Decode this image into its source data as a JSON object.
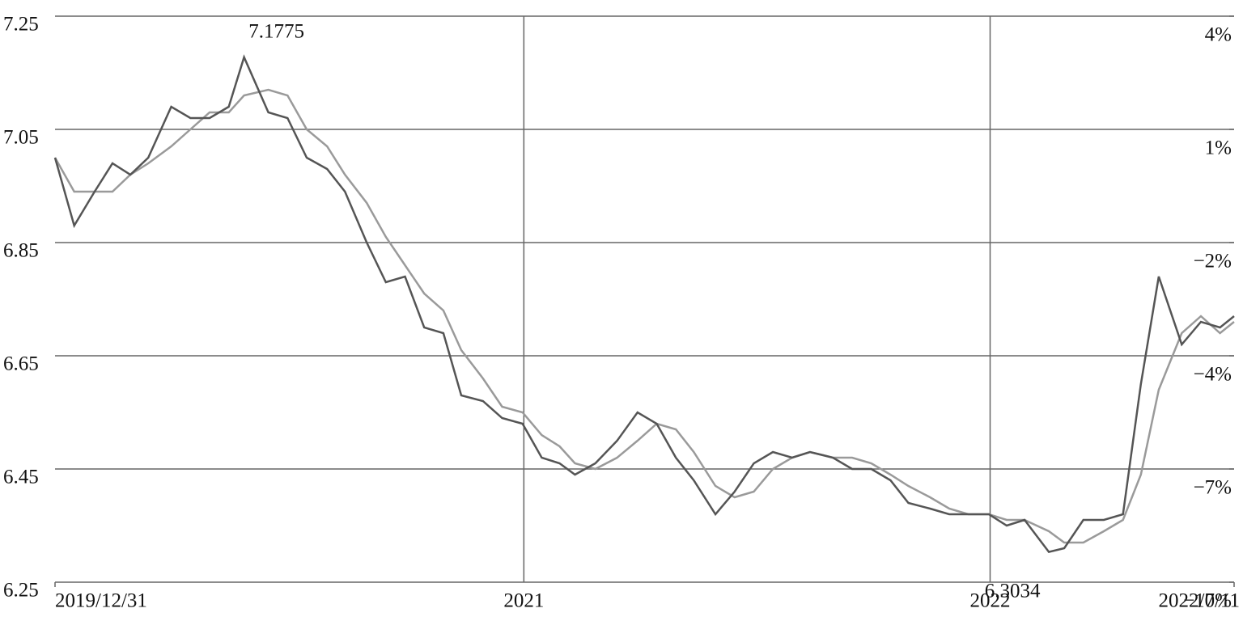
{
  "chart_data": {
    "type": "line",
    "x": [
      "2019/12/31",
      "2020/1/15",
      "2020/1/31",
      "2020/2/14",
      "2020/2/28",
      "2020/3/13",
      "2020/3/31",
      "2020/4/15",
      "2020/4/30",
      "2020/5/15",
      "2020/5/27",
      "2020/6/15",
      "2020/6/30",
      "2020/7/15",
      "2020/7/31",
      "2020/8/14",
      "2020/8/31",
      "2020/9/15",
      "2020/9/30",
      "2020/10/15",
      "2020/10/30",
      "2020/11/13",
      "2020/11/30",
      "2020/12/15",
      "2020/12/31",
      "2021/1/15",
      "2021/1/29",
      "2021/2/10",
      "2021/2/26",
      "2021/3/15",
      "2021/3/31",
      "2021/4/15",
      "2021/4/30",
      "2021/5/14",
      "2021/5/31",
      "2021/6/15",
      "2021/6/30",
      "2021/7/15",
      "2021/7/30",
      "2021/8/13",
      "2021/8/31",
      "2021/9/15",
      "2021/9/30",
      "2021/10/15",
      "2021/10/29",
      "2021/11/15",
      "2021/11/30",
      "2021/12/15",
      "2021/12/31",
      "2022/1/14",
      "2022/1/28",
      "2022/2/16",
      "2022/2/28",
      "2022/3/15",
      "2022/3/31",
      "2022/4/15",
      "2022/4/29",
      "2022/5/13",
      "2022/5/31",
      "2022/6/15",
      "2022/6/30",
      "2022/7/11"
    ],
    "series": [
      {
        "color": "#9a9a9a",
        "values": [
          7.0,
          6.94,
          6.94,
          6.94,
          6.97,
          6.99,
          7.02,
          7.05,
          7.08,
          7.08,
          7.11,
          7.12,
          7.11,
          7.05,
          7.02,
          6.97,
          6.92,
          6.86,
          6.81,
          6.76,
          6.73,
          6.66,
          6.61,
          6.56,
          6.55,
          6.51,
          6.49,
          6.46,
          6.45,
          6.47,
          6.5,
          6.53,
          6.52,
          6.48,
          6.42,
          6.4,
          6.41,
          6.45,
          6.47,
          6.48,
          6.47,
          6.47,
          6.46,
          6.44,
          6.42,
          6.4,
          6.38,
          6.37,
          6.37,
          6.36,
          6.36,
          6.34,
          6.32,
          6.32,
          6.34,
          6.36,
          6.44,
          6.59,
          6.69,
          6.72,
          6.69,
          6.71
        ]
      },
      {
        "color": "#555555",
        "values": [
          7.0,
          6.88,
          6.94,
          6.99,
          6.97,
          7.0,
          7.09,
          7.07,
          7.07,
          7.09,
          7.1775,
          7.08,
          7.07,
          7.0,
          6.98,
          6.94,
          6.85,
          6.78,
          6.79,
          6.7,
          6.69,
          6.58,
          6.57,
          6.54,
          6.53,
          6.47,
          6.46,
          6.44,
          6.46,
          6.5,
          6.55,
          6.53,
          6.47,
          6.43,
          6.37,
          6.41,
          6.46,
          6.48,
          6.47,
          6.48,
          6.47,
          6.45,
          6.45,
          6.43,
          6.39,
          6.38,
          6.37,
          6.37,
          6.37,
          6.35,
          6.36,
          6.3034,
          6.31,
          6.36,
          6.36,
          6.37,
          6.6,
          6.79,
          6.67,
          6.71,
          6.7,
          6.72
        ]
      }
    ],
    "xlim": [
      "2019/12/31",
      "2022/7/11"
    ],
    "xticks": [
      "2019/12/31",
      {
        "value": "2021/1/1",
        "label": "2021"
      },
      {
        "value": "2022/1/1",
        "label": "2022"
      },
      "2022/7/11"
    ],
    "ylim": [
      6.25,
      7.25
    ],
    "yticks": [
      6.25,
      6.45,
      6.65,
      6.85,
      7.05,
      7.25
    ],
    "y2lim": [
      -10,
      4
    ],
    "y2ticks": [
      {
        "value": -10,
        "label": "−10%"
      },
      {
        "value": -7.2,
        "label": "−7%"
      },
      {
        "value": -4.4,
        "label": "−4%"
      },
      {
        "value": -1.6,
        "label": "−2%"
      },
      {
        "value": 1.2,
        "label": "1%"
      },
      {
        "value": 4,
        "label": "4%"
      }
    ],
    "grid": true
  }
}
